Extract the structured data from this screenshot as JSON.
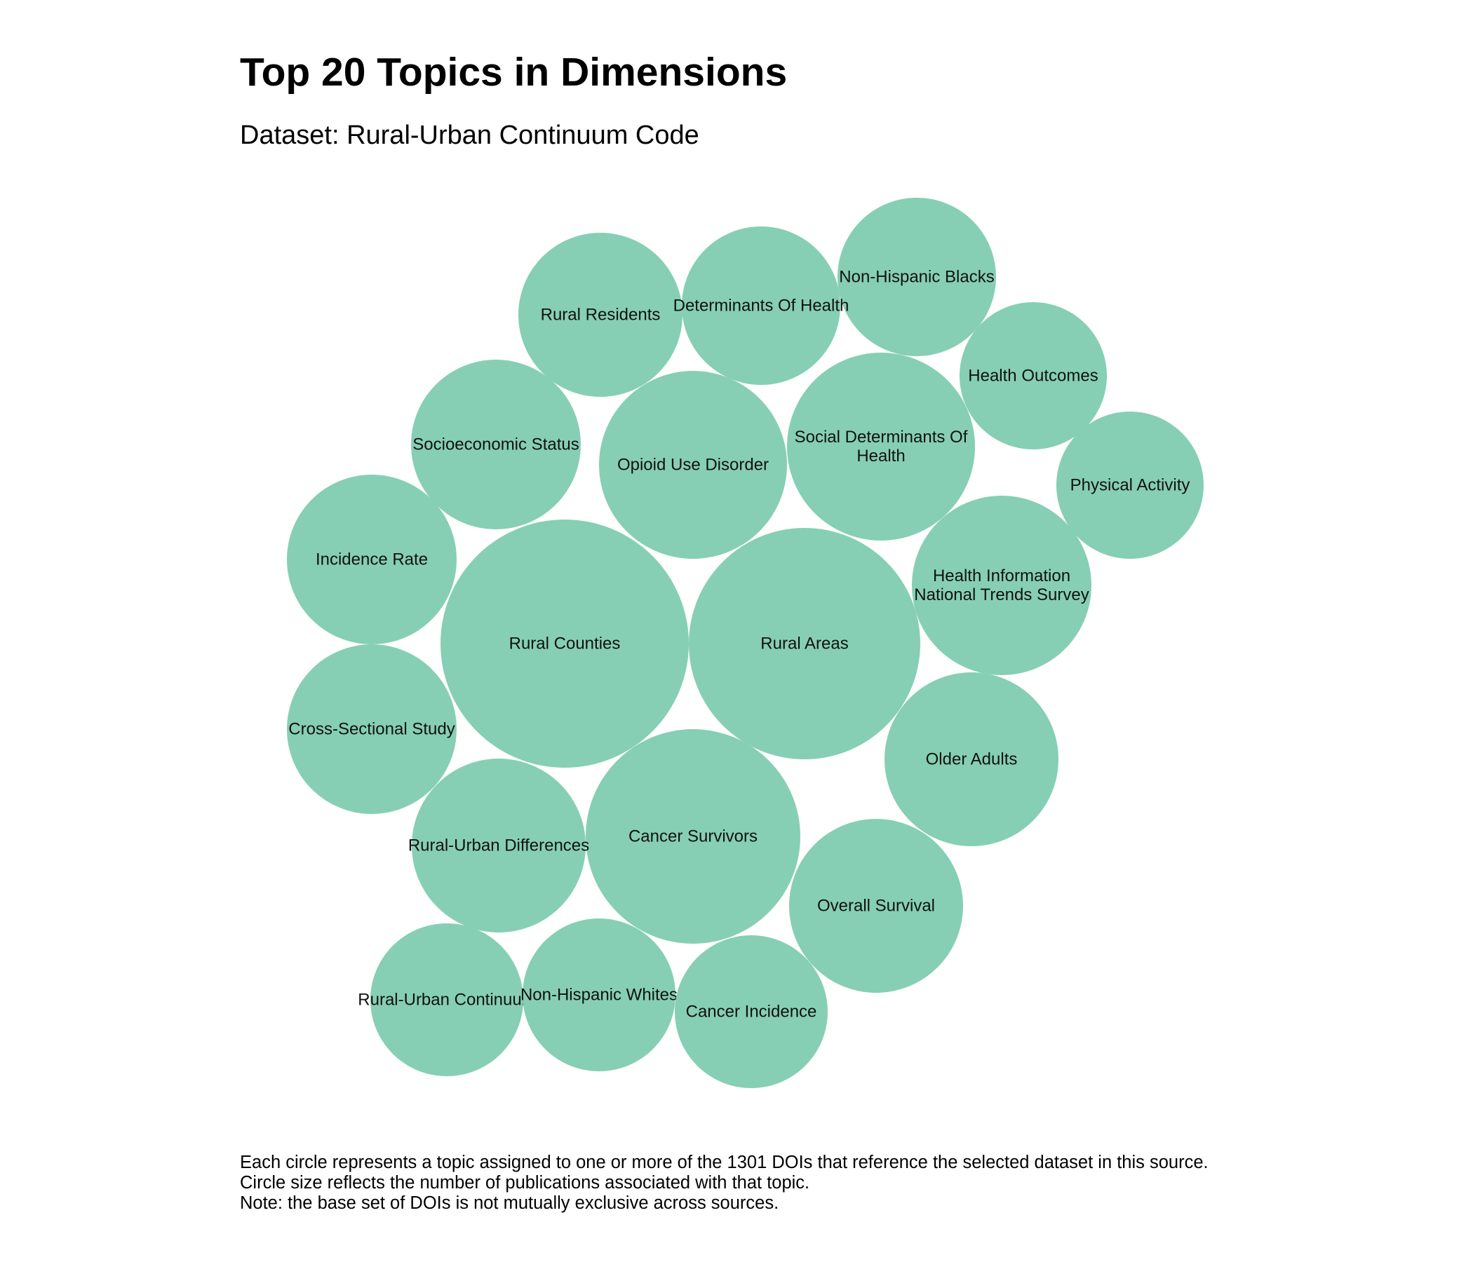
{
  "header": {
    "title": "Top 20 Topics in Dimensions",
    "subtitle": "Dataset: Rural-Urban Continuum Code"
  },
  "caption": [
    "Each circle represents a topic assigned to one or more of the 1301 DOIs that reference the selected dataset in this source.",
    "Circle size reflects the number of publications associated with that topic.",
    "Note: the base set of DOIs is not mutually exclusive across sources."
  ],
  "colors": {
    "bubble": "#86cfb5",
    "label": "#111111"
  },
  "chart_data": {
    "type": "bubble",
    "title": "Top 20 Topics in Dimensions",
    "subtitle": "Dataset: Rural-Urban Continuum Code",
    "size_encoding": "number of publications associated with topic",
    "topics": [
      {
        "name": "Rural Counties",
        "lines": [
          "Rural Counties"
        ]
      },
      {
        "name": "Rural Areas",
        "lines": [
          "Rural Areas"
        ]
      },
      {
        "name": "Cancer Survivors",
        "lines": [
          "Cancer Survivors"
        ]
      },
      {
        "name": "Opioid Use Disorder",
        "lines": [
          "Opioid Use Disorder"
        ]
      },
      {
        "name": "Social Determinants Of Health",
        "lines": [
          "Social Determinants Of",
          "Health"
        ]
      },
      {
        "name": "Health Information National Trends Survey",
        "lines": [
          "Health Information",
          "National Trends Survey"
        ]
      },
      {
        "name": "Rural-Urban Differences",
        "lines": [
          "Rural-Urban Differences"
        ]
      },
      {
        "name": "Older Adults",
        "lines": [
          "Older Adults"
        ]
      },
      {
        "name": "Overall Survival",
        "lines": [
          "Overall Survival"
        ]
      },
      {
        "name": "Socioeconomic Status",
        "lines": [
          "Socioeconomic Status"
        ]
      },
      {
        "name": "Incidence Rate",
        "lines": [
          "Incidence Rate"
        ]
      },
      {
        "name": "Cross-Sectional Study",
        "lines": [
          "Cross-Sectional Study"
        ]
      },
      {
        "name": "Rural Residents",
        "lines": [
          "Rural Residents"
        ]
      },
      {
        "name": "Non-Hispanic Blacks",
        "lines": [
          "Non-Hispanic Blacks"
        ]
      },
      {
        "name": "Determinants Of Health",
        "lines": [
          "Determinants Of Health"
        ]
      },
      {
        "name": "Health Outcomes",
        "lines": [
          "Health Outcomes"
        ]
      },
      {
        "name": "Rural-Urban Continuum",
        "lines": [
          "Rural-Urban Continuum"
        ]
      },
      {
        "name": "Non-Hispanic Whites",
        "lines": [
          "Non-Hispanic Whites"
        ]
      },
      {
        "name": "Cancer Incidence",
        "lines": [
          "Cancer Incidence"
        ]
      },
      {
        "name": "Physical Activity",
        "lines": [
          "Physical Activity"
        ]
      }
    ]
  }
}
